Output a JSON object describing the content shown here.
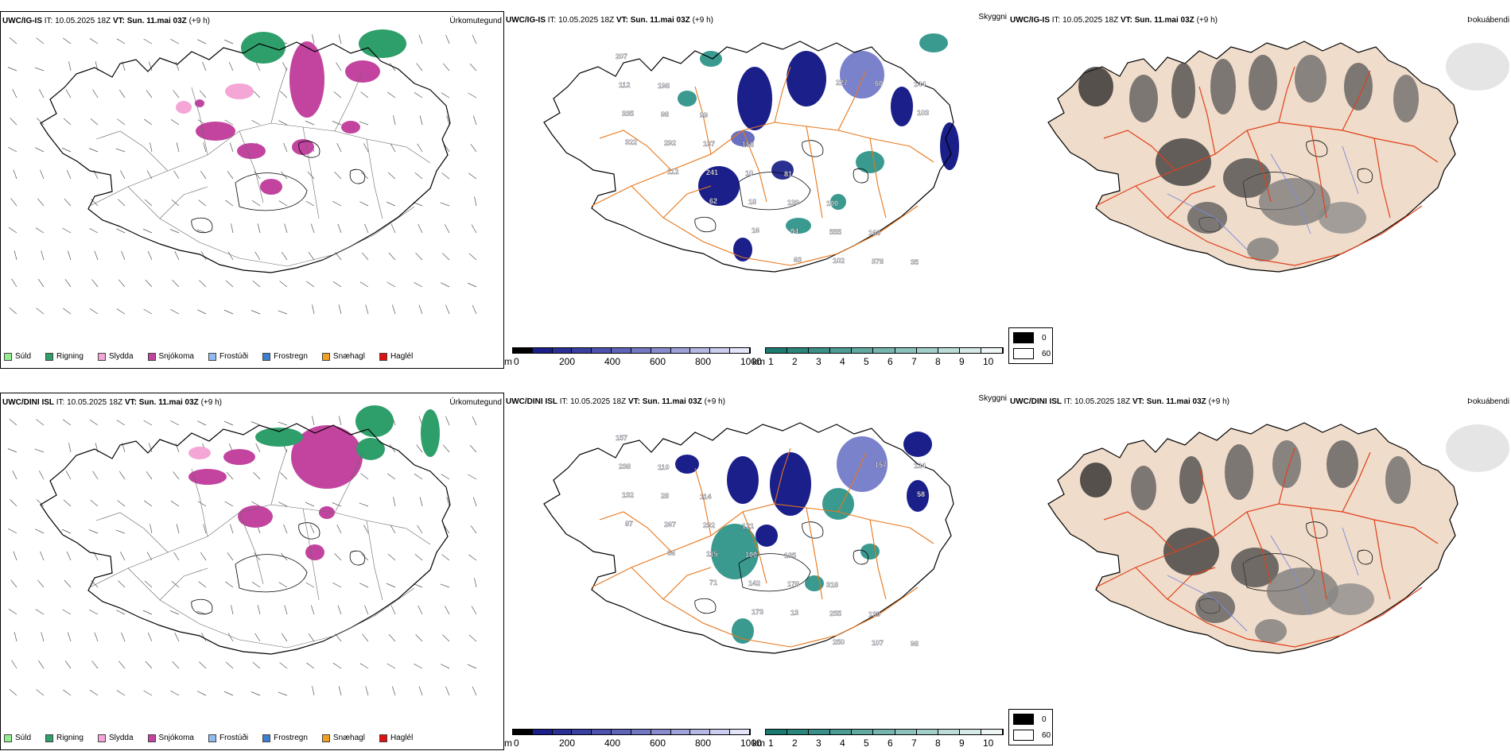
{
  "colors": {
    "sudd": "#90ee90",
    "rigning": "#2e9e6a",
    "slydda": "#f4a6d7",
    "snjokoma": "#c2449f",
    "frostudi": "#8fbcf0",
    "frostregn": "#3b7fd0",
    "snaehagl": "#f0a020",
    "haglel": "#e01010",
    "road": "#e8761a",
    "land_cloud": "#efdcca"
  },
  "rows": [
    {
      "model": "UWC/IG-IS",
      "it_label": "IT:",
      "it_value": "10.05.2025 18Z",
      "vt_label": "VT:",
      "vt_value": "Sun. 11.mai 03Z",
      "lead": "(+9 h)",
      "precip_title": "Úrkomutegund",
      "vis_title": "Skyggni",
      "cloud_title": "Þokuábendi",
      "cloud_labels": [
        "0",
        "60"
      ],
      "vis_labels": [
        "207",
        "198",
        "99",
        "158",
        "81",
        "100",
        "168",
        "35",
        "112",
        "98",
        "137",
        "10",
        "139",
        "555",
        "378",
        "144",
        "335",
        "292",
        "241",
        "18",
        "94",
        "102",
        "60",
        "103",
        "322",
        "112",
        "62",
        "16",
        "63",
        "227"
      ]
    },
    {
      "model": "UWC/DINI ISL",
      "it_label": "IT:",
      "it_value": "10.05.2025 18Z",
      "vt_label": "VT:",
      "vt_value": "Sun. 11.mai 03Z",
      "lead": "(+9 h)",
      "precip_title": "Úrkomutegund",
      "vis_title": "Skyggni",
      "cloud_title": "Þokuábendi",
      "cloud_labels": [
        "0",
        "60"
      ],
      "vis_labels": [
        "157",
        "110",
        "114",
        "121",
        "185",
        "318",
        "139",
        "98",
        "238",
        "28",
        "292",
        "100",
        "178",
        "255",
        "107",
        "124",
        "132",
        "267",
        "115",
        "142",
        "13",
        "250",
        "157",
        "58",
        "87",
        "66",
        "71",
        "173"
      ]
    }
  ],
  "precip_legend": [
    "Súld",
    "Rigning",
    "Slydda",
    "Snjókoma",
    "Frostúði",
    "Frostregn",
    "Snæhagl",
    "Haglél"
  ],
  "vis_bar_m": {
    "unit": "m",
    "labels": [
      "0",
      "200",
      "400",
      "600",
      "800",
      "1000"
    ]
  },
  "vis_bar_km": {
    "unit": "km",
    "labels": [
      "1",
      "2",
      "3",
      "4",
      "5",
      "6",
      "7",
      "8",
      "9",
      "10"
    ]
  }
}
